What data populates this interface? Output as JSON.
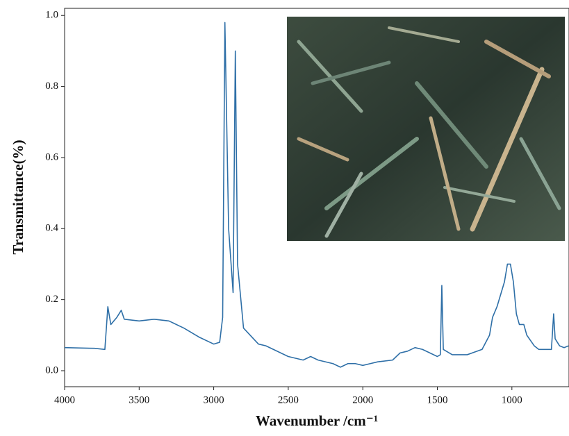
{
  "chart_data": {
    "type": "line",
    "x_label": "Wavenumber /cm⁻¹",
    "y_label": "Transmittance(%)",
    "xlim": [
      4000,
      617
    ],
    "ylim": [
      -0.045,
      1.02
    ],
    "x_reversed": true,
    "xticks": [
      4000,
      3500,
      3000,
      2500,
      2000,
      1500,
      1000
    ],
    "yticks": [
      {
        "value": 0,
        "label": "0.0"
      },
      0.2,
      0.4,
      0.6,
      0.8,
      {
        "value": 1,
        "label": "1.0"
      }
    ],
    "grid": false,
    "series": [
      {
        "color": "#2e6fa7",
        "x": [
          4000,
          3800,
          3730,
          3710,
          3690,
          3650,
          3620,
          3600,
          3500,
          3400,
          3300,
          3200,
          3100,
          3000,
          2960,
          2940,
          2925,
          2900,
          2870,
          2855,
          2840,
          2800,
          2700,
          2650,
          2600,
          2500,
          2400,
          2350,
          2300,
          2200,
          2150,
          2100,
          2050,
          2000,
          1950,
          1900,
          1800,
          1750,
          1700,
          1650,
          1600,
          1550,
          1500,
          1480,
          1470,
          1460,
          1400,
          1300,
          1200,
          1150,
          1130,
          1100,
          1050,
          1030,
          1010,
          990,
          970,
          950,
          920,
          900,
          850,
          820,
          800,
          760,
          735,
          720,
          710,
          680,
          650,
          620
        ],
        "values": [
          0.065,
          0.063,
          0.06,
          0.18,
          0.13,
          0.15,
          0.17,
          0.145,
          0.14,
          0.145,
          0.14,
          0.12,
          0.095,
          0.075,
          0.08,
          0.15,
          0.98,
          0.4,
          0.22,
          0.9,
          0.3,
          0.12,
          0.075,
          0.07,
          0.06,
          0.04,
          0.03,
          0.04,
          0.03,
          0.02,
          0.01,
          0.02,
          0.02,
          0.015,
          0.02,
          0.025,
          0.03,
          0.05,
          0.055,
          0.065,
          0.06,
          0.05,
          0.04,
          0.045,
          0.24,
          0.06,
          0.045,
          0.045,
          0.06,
          0.1,
          0.15,
          0.18,
          0.25,
          0.3,
          0.3,
          0.25,
          0.16,
          0.13,
          0.13,
          0.1,
          0.07,
          0.06,
          0.06,
          0.06,
          0.06,
          0.16,
          0.09,
          0.07,
          0.065,
          0.07
        ]
      }
    ]
  }
}
